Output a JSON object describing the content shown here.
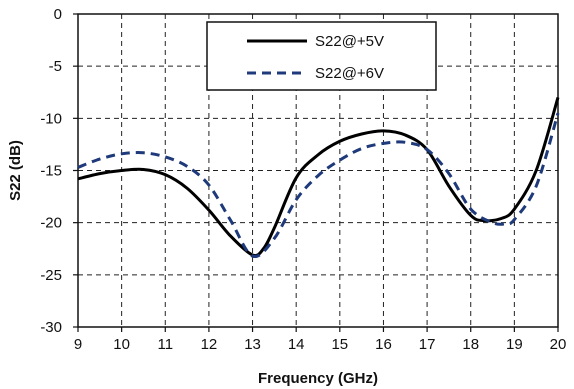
{
  "chart_data": {
    "type": "line",
    "title": "",
    "xlabel": "Frequency (GHz)",
    "ylabel": "S22 (dB)",
    "xlim": [
      9,
      20
    ],
    "ylim": [
      -30,
      0
    ],
    "xticks": [
      9,
      10,
      11,
      12,
      13,
      14,
      15,
      16,
      17,
      18,
      19,
      20
    ],
    "yticks": [
      0,
      -5,
      -10,
      -15,
      -20,
      -25,
      -30
    ],
    "grid": true,
    "legend_position": "top-center",
    "series": [
      {
        "name": "S22@+5V",
        "color": "#000000",
        "style": "solid",
        "x": [
          9,
          9.5,
          10,
          10.5,
          11,
          11.5,
          12,
          12.5,
          13,
          13.25,
          13.5,
          14,
          14.5,
          15,
          15.5,
          16,
          16.5,
          17,
          17.5,
          18,
          18.3,
          18.7,
          19,
          19.5,
          20
        ],
        "y": [
          -15.8,
          -15.3,
          -15.0,
          -14.9,
          -15.4,
          -16.7,
          -18.8,
          -21.3,
          -23.1,
          -22.5,
          -20.5,
          -15.7,
          -13.5,
          -12.2,
          -11.5,
          -11.2,
          -11.6,
          -13.0,
          -16.5,
          -19.3,
          -19.8,
          -19.6,
          -18.7,
          -15.0,
          -8.0
        ]
      },
      {
        "name": "S22@+6V",
        "color": "#1f3a7a",
        "style": "dashed",
        "x": [
          9,
          9.5,
          10,
          10.5,
          11,
          11.5,
          12,
          12.5,
          13,
          13.5,
          14,
          14.5,
          15,
          15.5,
          16,
          16.5,
          17,
          17.5,
          18,
          18.5,
          18.8,
          19,
          19.5,
          20
        ],
        "y": [
          -14.7,
          -13.9,
          -13.4,
          -13.3,
          -13.7,
          -14.6,
          -16.4,
          -19.8,
          -23.2,
          -21.5,
          -17.8,
          -15.5,
          -14.0,
          -12.9,
          -12.4,
          -12.3,
          -13.0,
          -15.3,
          -18.7,
          -20.0,
          -20.1,
          -19.7,
          -16.5,
          -9.5
        ]
      }
    ]
  }
}
